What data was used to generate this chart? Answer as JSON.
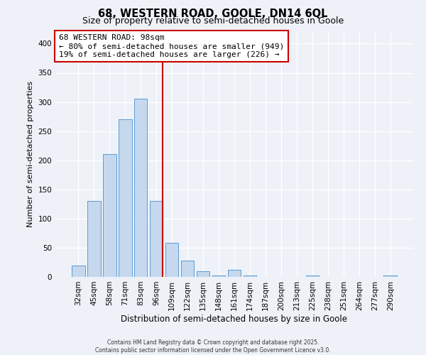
{
  "title_line1": "68, WESTERN ROAD, GOOLE, DN14 6QL",
  "title_line2": "Size of property relative to semi-detached houses in Goole",
  "xlabel": "Distribution of semi-detached houses by size in Goole",
  "ylabel": "Number of semi-detached properties",
  "bar_labels": [
    "32sqm",
    "45sqm",
    "58sqm",
    "71sqm",
    "83sqm",
    "96sqm",
    "109sqm",
    "122sqm",
    "135sqm",
    "148sqm",
    "161sqm",
    "174sqm",
    "187sqm",
    "200sqm",
    "213sqm",
    "225sqm",
    "238sqm",
    "251sqm",
    "264sqm",
    "277sqm",
    "290sqm"
  ],
  "bar_values": [
    20,
    130,
    210,
    270,
    305,
    130,
    58,
    28,
    10,
    3,
    12,
    3,
    0,
    0,
    0,
    3,
    0,
    0,
    0,
    0,
    3
  ],
  "bar_color": "#c5d8ed",
  "bar_edge_color": "#5b9bd5",
  "property_bin_index": 5,
  "annotation_title": "68 WESTERN ROAD: 98sqm",
  "annotation_line1": "← 80% of semi-detached houses are smaller (949)",
  "annotation_line2": "19% of semi-detached houses are larger (226) →",
  "vline_color": "#cc0000",
  "ylim": [
    0,
    420
  ],
  "yticks": [
    0,
    50,
    100,
    150,
    200,
    250,
    300,
    350,
    400
  ],
  "background_color": "#eef2f8",
  "footer_line1": "Contains HM Land Registry data © Crown copyright and database right 2025.",
  "footer_line2": "Contains public sector information licensed under the Open Government Licence v3.0.",
  "title_fontsize": 10.5,
  "subtitle_fontsize": 9
}
